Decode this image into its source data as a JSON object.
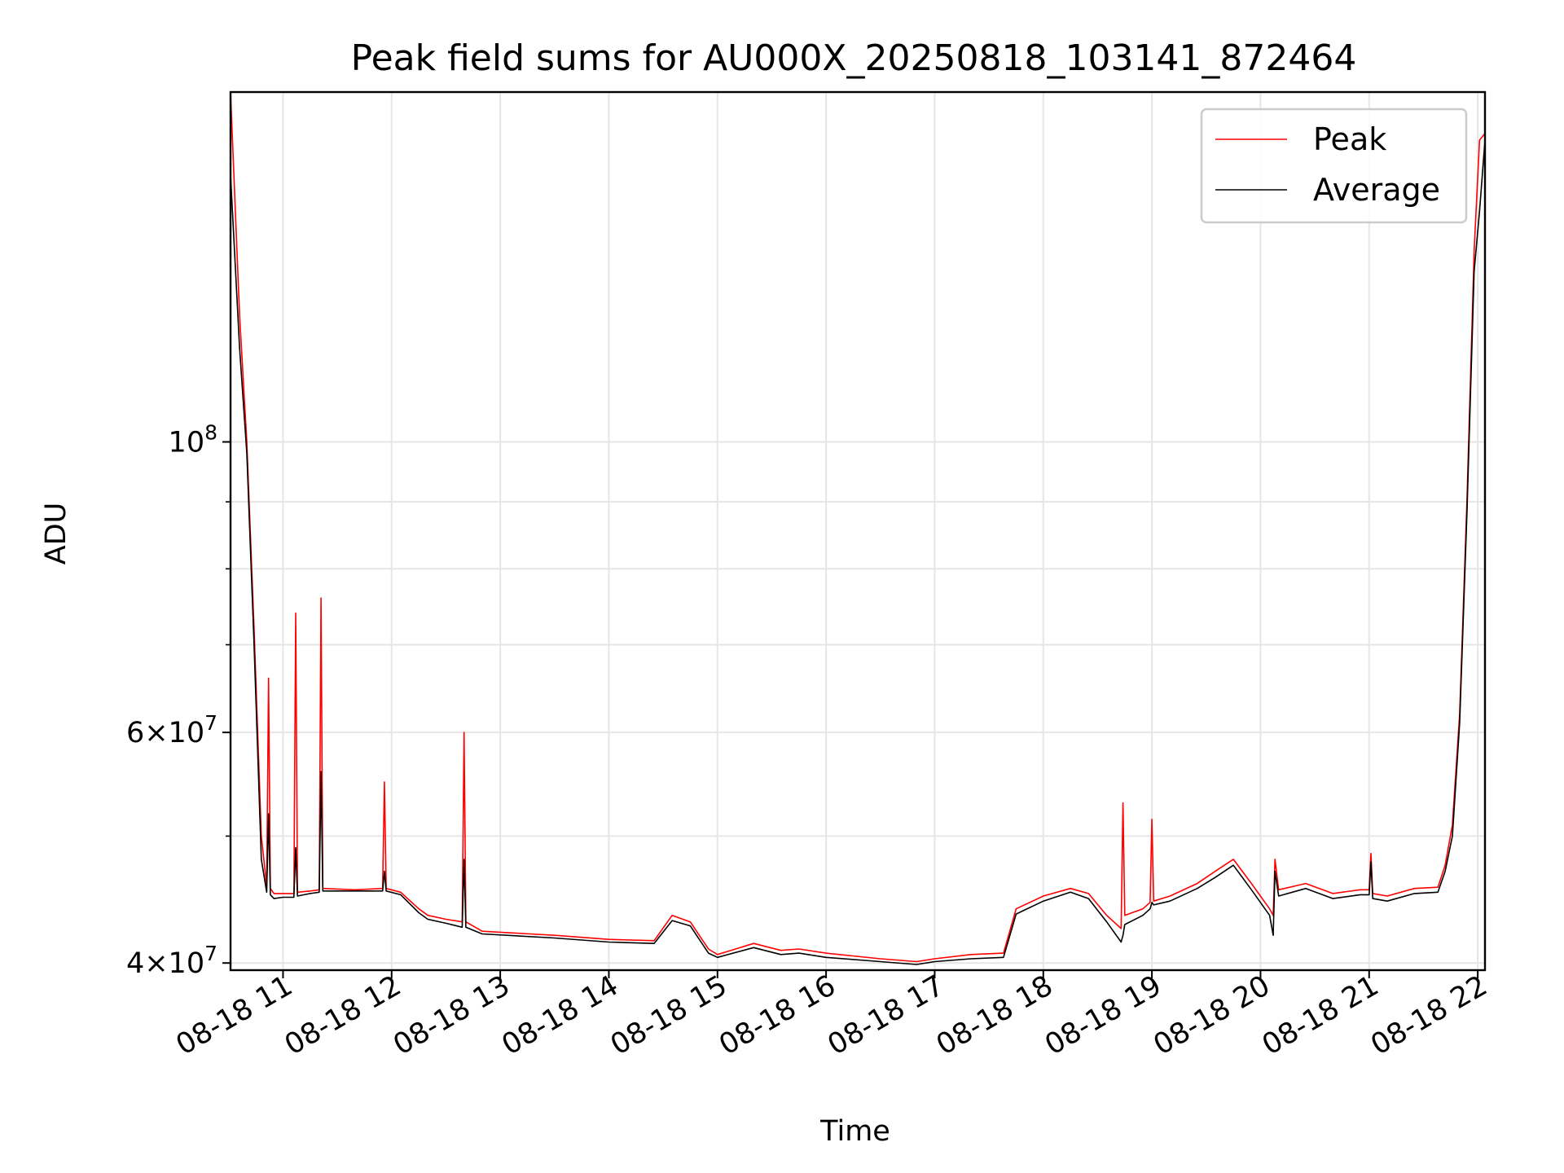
{
  "chart_data": {
    "type": "line",
    "title": "Peak field sums for AU000X_20250818_103141_872464",
    "xlabel": "Time",
    "ylabel": "ADU",
    "x_scale": "time",
    "y_scale": "log",
    "xlim": [
      "2025-08-18 10:31",
      "2025-08-18 22:04"
    ],
    "ylim": [
      39500000,
      185000000
    ],
    "grid": true,
    "legend": "top-right",
    "x_ticks": [
      "08-18 11",
      "08-18 12",
      "08-18 13",
      "08-18 14",
      "08-18 15",
      "08-18 16",
      "08-18 17",
      "08-18 18",
      "08-18 19",
      "08-18 20",
      "08-18 21",
      "08-18 22"
    ],
    "y_ticks": [
      {
        "value": 100000000,
        "base": "10",
        "exp": "8",
        "mant": ""
      },
      {
        "value": 60000000,
        "base": "10",
        "exp": "7",
        "mant": "6"
      },
      {
        "value": 40000000,
        "base": "10",
        "exp": "7",
        "mant": "4"
      }
    ],
    "series": [
      {
        "name": "Peak",
        "color": "#ff0000",
        "x": [
          "2025-08-18 10:31",
          "2025-08-18 10:36",
          "2025-08-18 10:40",
          "2025-08-18 10:44",
          "2025-08-18 10:48",
          "2025-08-18 10:51",
          "2025-08-18 10:52",
          "2025-08-18 10:53",
          "2025-08-18 10:55",
          "2025-08-18 11:00",
          "2025-08-18 11:06",
          "2025-08-18 11:07",
          "2025-08-18 11:08",
          "2025-08-18 11:15",
          "2025-08-18 11:20",
          "2025-08-18 11:21",
          "2025-08-18 11:22",
          "2025-08-18 11:40",
          "2025-08-18 11:55",
          "2025-08-18 11:56",
          "2025-08-18 11:57",
          "2025-08-18 12:05",
          "2025-08-18 12:15",
          "2025-08-18 12:20",
          "2025-08-18 12:30",
          "2025-08-18 12:39",
          "2025-08-18 12:40",
          "2025-08-18 12:41",
          "2025-08-18 12:50",
          "2025-08-18 13:30",
          "2025-08-18 14:00",
          "2025-08-18 14:25",
          "2025-08-18 14:35",
          "2025-08-18 14:45",
          "2025-08-18 14:55",
          "2025-08-18 15:00",
          "2025-08-18 15:20",
          "2025-08-18 15:35",
          "2025-08-18 15:45",
          "2025-08-18 16:00",
          "2025-08-18 16:30",
          "2025-08-18 16:50",
          "2025-08-18 17:00",
          "2025-08-18 17:20",
          "2025-08-18 17:38",
          "2025-08-18 17:45",
          "2025-08-18 18:00",
          "2025-08-18 18:15",
          "2025-08-18 18:25",
          "2025-08-18 18:35",
          "2025-08-18 18:43",
          "2025-08-18 18:44",
          "2025-08-18 18:45",
          "2025-08-18 18:55",
          "2025-08-18 18:59",
          "2025-08-18 19:00",
          "2025-08-18 19:01",
          "2025-08-18 19:10",
          "2025-08-18 19:25",
          "2025-08-18 19:35",
          "2025-08-18 19:45",
          "2025-08-18 19:55",
          "2025-08-18 20:05",
          "2025-08-18 20:07",
          "2025-08-18 20:08",
          "2025-08-18 20:10",
          "2025-08-18 20:25",
          "2025-08-18 20:40",
          "2025-08-18 20:55",
          "2025-08-18 21:00",
          "2025-08-18 21:01",
          "2025-08-18 21:02",
          "2025-08-18 21:10",
          "2025-08-18 21:25",
          "2025-08-18 21:38",
          "2025-08-18 21:42",
          "2025-08-18 21:46",
          "2025-08-18 21:50",
          "2025-08-18 21:54",
          "2025-08-18 21:58",
          "2025-08-18 22:01",
          "2025-08-18 22:04"
        ],
        "y": [
          185000000,
          125000000,
          100000000,
          72000000,
          50000000,
          45800000,
          66000000,
          45600000,
          45200000,
          45200000,
          45200000,
          74000000,
          45300000,
          45400000,
          45500000,
          76000000,
          45600000,
          45500000,
          45600000,
          55000000,
          45600000,
          45300000,
          44000000,
          43500000,
          43200000,
          43000000,
          60000000,
          43000000,
          42300000,
          42000000,
          41700000,
          41600000,
          43500000,
          43000000,
          41000000,
          40600000,
          41400000,
          40900000,
          41000000,
          40700000,
          40300000,
          40100000,
          40300000,
          40600000,
          40700000,
          44000000,
          45000000,
          45600000,
          45200000,
          43500000,
          42500000,
          53000000,
          43500000,
          44000000,
          44500000,
          51500000,
          44600000,
          45000000,
          46000000,
          47000000,
          48000000,
          46000000,
          44000000,
          43500000,
          48000000,
          45500000,
          46000000,
          45200000,
          45500000,
          45500000,
          48500000,
          45200000,
          45000000,
          45600000,
          45700000,
          47500000,
          51000000,
          62000000,
          90000000,
          140000000,
          170000000,
          172000000
        ]
      },
      {
        "name": "Average",
        "color": "#000000",
        "x": [
          "2025-08-18 10:31",
          "2025-08-18 10:36",
          "2025-08-18 10:40",
          "2025-08-18 10:44",
          "2025-08-18 10:48",
          "2025-08-18 10:51",
          "2025-08-18 10:52",
          "2025-08-18 10:53",
          "2025-08-18 10:55",
          "2025-08-18 11:00",
          "2025-08-18 11:06",
          "2025-08-18 11:07",
          "2025-08-18 11:08",
          "2025-08-18 11:15",
          "2025-08-18 11:20",
          "2025-08-18 11:21",
          "2025-08-18 11:22",
          "2025-08-18 11:40",
          "2025-08-18 11:55",
          "2025-08-18 11:56",
          "2025-08-18 11:57",
          "2025-08-18 12:05",
          "2025-08-18 12:15",
          "2025-08-18 12:20",
          "2025-08-18 12:30",
          "2025-08-18 12:39",
          "2025-08-18 12:40",
          "2025-08-18 12:41",
          "2025-08-18 12:50",
          "2025-08-18 13:30",
          "2025-08-18 14:00",
          "2025-08-18 14:25",
          "2025-08-18 14:35",
          "2025-08-18 14:45",
          "2025-08-18 14:55",
          "2025-08-18 15:00",
          "2025-08-18 15:20",
          "2025-08-18 15:35",
          "2025-08-18 15:45",
          "2025-08-18 16:00",
          "2025-08-18 16:30",
          "2025-08-18 16:50",
          "2025-08-18 17:00",
          "2025-08-18 17:20",
          "2025-08-18 17:38",
          "2025-08-18 17:45",
          "2025-08-18 18:00",
          "2025-08-18 18:15",
          "2025-08-18 18:25",
          "2025-08-18 18:35",
          "2025-08-18 18:43",
          "2025-08-18 18:44",
          "2025-08-18 18:45",
          "2025-08-18 18:55",
          "2025-08-18 18:59",
          "2025-08-18 19:00",
          "2025-08-18 19:01",
          "2025-08-18 19:10",
          "2025-08-18 19:25",
          "2025-08-18 19:35",
          "2025-08-18 19:45",
          "2025-08-18 19:55",
          "2025-08-18 20:05",
          "2025-08-18 20:07",
          "2025-08-18 20:08",
          "2025-08-18 20:10",
          "2025-08-18 20:25",
          "2025-08-18 20:40",
          "2025-08-18 20:55",
          "2025-08-18 21:00",
          "2025-08-18 21:01",
          "2025-08-18 21:02",
          "2025-08-18 21:10",
          "2025-08-18 21:25",
          "2025-08-18 21:38",
          "2025-08-18 21:42",
          "2025-08-18 21:46",
          "2025-08-18 21:50",
          "2025-08-18 21:54",
          "2025-08-18 21:58",
          "2025-08-18 22:01",
          "2025-08-18 22:04"
        ],
        "y": [
          160000000,
          118000000,
          98000000,
          70000000,
          48000000,
          45300000,
          52000000,
          45100000,
          44800000,
          44900000,
          44900000,
          49000000,
          45000000,
          45200000,
          45300000,
          56000000,
          45400000,
          45400000,
          45400000,
          47000000,
          45400000,
          45100000,
          43700000,
          43200000,
          42900000,
          42600000,
          48000000,
          42600000,
          42100000,
          41800000,
          41500000,
          41400000,
          43100000,
          42700000,
          40700000,
          40400000,
          41100000,
          40600000,
          40700000,
          40400000,
          40100000,
          39900000,
          40100000,
          40300000,
          40400000,
          43600000,
          44600000,
          45300000,
          44800000,
          43000000,
          41500000,
          42000000,
          42800000,
          43500000,
          44000000,
          44500000,
          44300000,
          44600000,
          45600000,
          46500000,
          47500000,
          45500000,
          43500000,
          42000000,
          47000000,
          45000000,
          45600000,
          44800000,
          45100000,
          45100000,
          47800000,
          44800000,
          44600000,
          45200000,
          45300000,
          47000000,
          50000000,
          61000000,
          88000000,
          135000000,
          150000000,
          170000000
        ]
      }
    ]
  }
}
